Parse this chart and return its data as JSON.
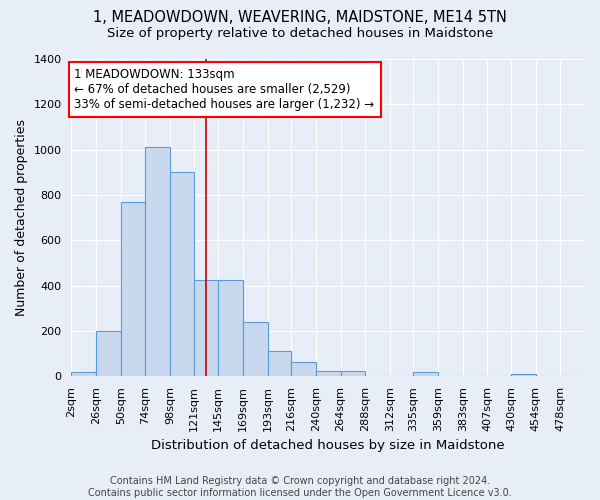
{
  "title": "1, MEADOWDOWN, WEAVERING, MAIDSTONE, ME14 5TN",
  "subtitle": "Size of property relative to detached houses in Maidstone",
  "xlabel": "Distribution of detached houses by size in Maidstone",
  "ylabel": "Number of detached properties",
  "bar_labels": [
    "2sqm",
    "26sqm",
    "50sqm",
    "74sqm",
    "98sqm",
    "121sqm",
    "145sqm",
    "169sqm",
    "193sqm",
    "216sqm",
    "240sqm",
    "264sqm",
    "288sqm",
    "312sqm",
    "335sqm",
    "359sqm",
    "383sqm",
    "407sqm",
    "430sqm",
    "454sqm",
    "478sqm"
  ],
  "bar_edges": [
    2,
    26,
    50,
    74,
    98,
    121,
    145,
    169,
    193,
    216,
    240,
    264,
    288,
    312,
    335,
    359,
    383,
    407,
    430,
    454,
    478,
    502
  ],
  "bar_heights": [
    20,
    200,
    770,
    1010,
    900,
    425,
    425,
    240,
    110,
    65,
    25,
    25,
    0,
    0,
    20,
    0,
    0,
    0,
    10,
    0,
    0
  ],
  "bar_color": "#c8d9ef",
  "bar_edge_color": "#5b9bd5",
  "background_color": "#e8eef8",
  "grid_color": "#ffffff",
  "vline_x": 133,
  "vline_color": "#cc0000",
  "ylim": [
    0,
    1400
  ],
  "yticks": [
    0,
    200,
    400,
    600,
    800,
    1000,
    1200,
    1400
  ],
  "annotation_lines": [
    "1 MEADOWDOWN: 133sqm",
    "← 67% of detached houses are smaller (2,529)",
    "33% of semi-detached houses are larger (1,232) →"
  ],
  "footer_line1": "Contains HM Land Registry data © Crown copyright and database right 2024.",
  "footer_line2": "Contains public sector information licensed under the Open Government Licence v3.0.",
  "title_fontsize": 10.5,
  "subtitle_fontsize": 9.5,
  "xlabel_fontsize": 9.5,
  "ylabel_fontsize": 9,
  "tick_fontsize": 8,
  "footer_fontsize": 7,
  "annot_fontsize": 8.5
}
